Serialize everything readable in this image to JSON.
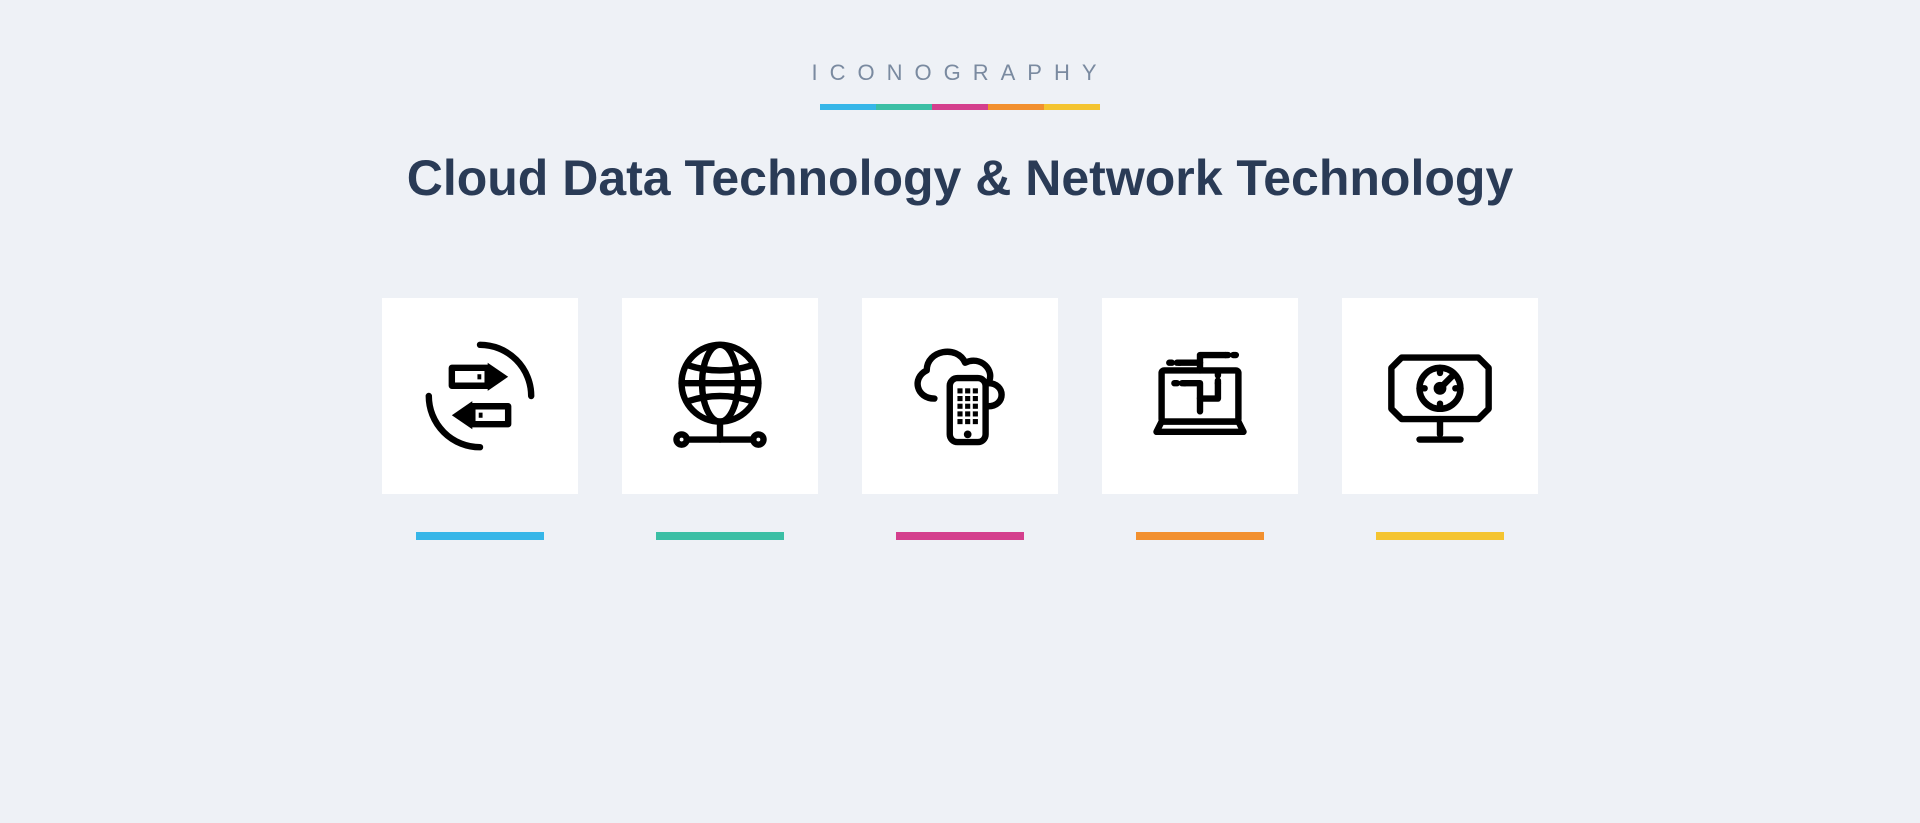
{
  "brand": {
    "label": "ICONOGRAPHY",
    "underline_colors": [
      "#36b6e8",
      "#3bbfa5",
      "#d43f8d",
      "#f2902f",
      "#f4c430"
    ]
  },
  "title": "Cloud Data Technology & Network Technology",
  "icons": [
    {
      "name": "data-transfer-icon"
    },
    {
      "name": "globe-network-icon"
    },
    {
      "name": "cloud-mobile-icon"
    },
    {
      "name": "laptop-network-icon"
    },
    {
      "name": "dashboard-monitor-icon"
    }
  ],
  "accent_colors": [
    "#36b6e8",
    "#3bbfa5",
    "#d43f8d",
    "#f2902f",
    "#f4c430"
  ],
  "style": {
    "background": "#eef1f6",
    "card_bg": "#ffffff",
    "icon_stroke": "#000000",
    "title_color": "#2a3b56",
    "brand_label_color": "#7a8aa0"
  }
}
